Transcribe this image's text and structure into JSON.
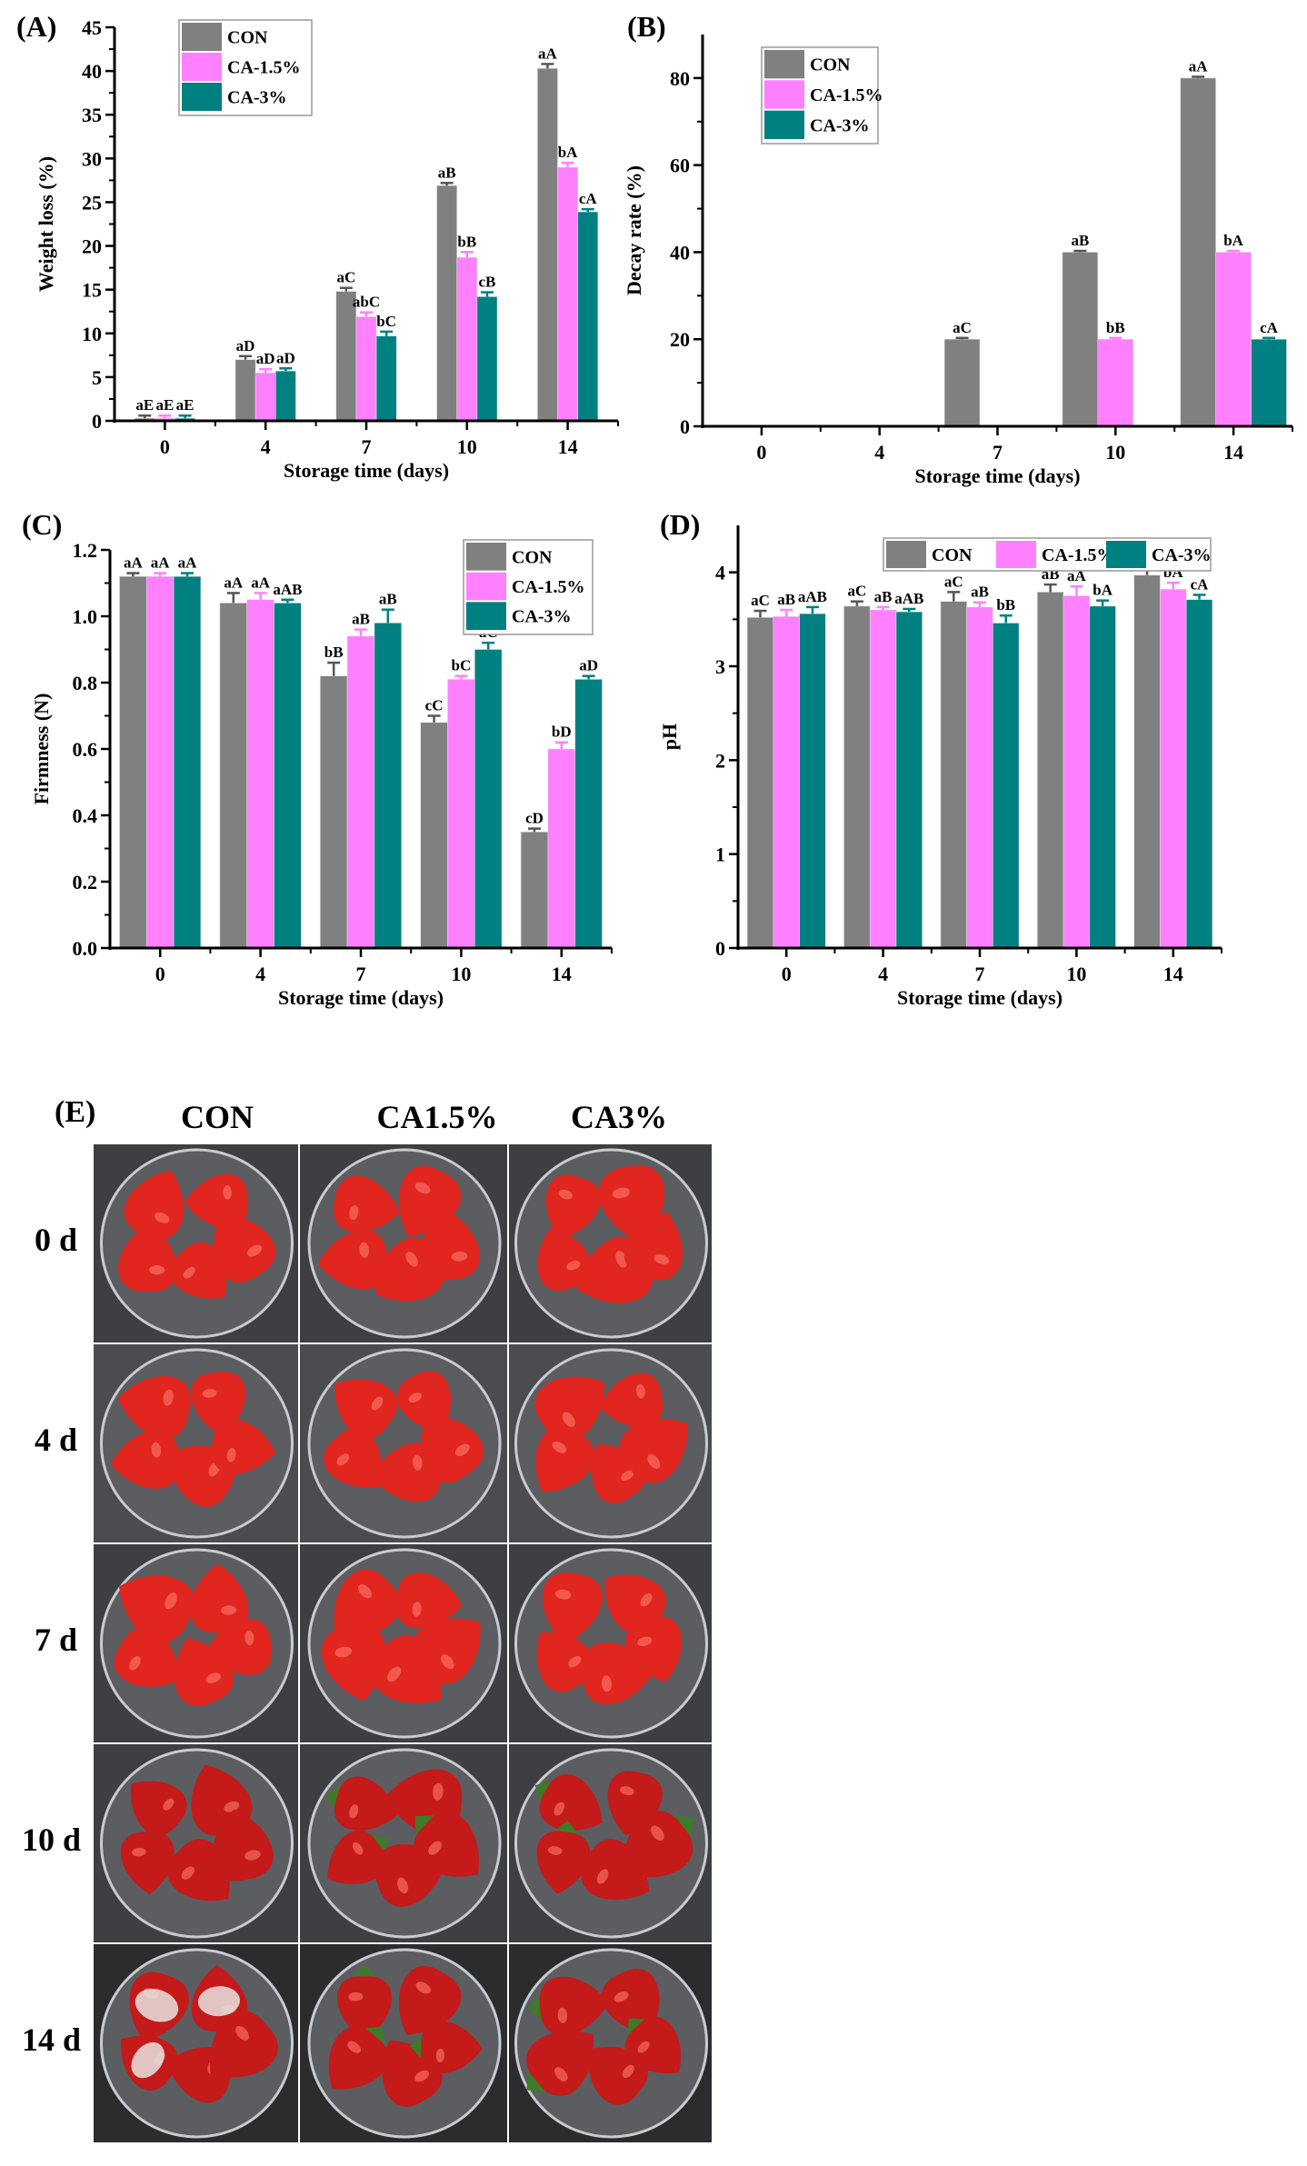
{
  "colors": {
    "CON": "#808080",
    "CA-1.5%": "#ff80ff",
    "CA-3%": "#008080"
  },
  "chart_data": [
    {
      "panel": "(A)",
      "type": "bar",
      "categories": [
        "0",
        "4",
        "7",
        "10",
        "14"
      ],
      "xlabel": "Storage time (days)",
      "ylabel": "Weight loss (%)",
      "ylim": [
        0,
        45
      ],
      "yticks": [
        0,
        5,
        10,
        15,
        20,
        25,
        30,
        35,
        40,
        45
      ],
      "legend": "top-left",
      "series": [
        {
          "name": "CON",
          "values": [
            0.3,
            7.0,
            14.8,
            26.9,
            40.3
          ],
          "errors": [
            0.3,
            0.4,
            0.4,
            0.3,
            0.5
          ],
          "labels": [
            "aE",
            "aD",
            "aC",
            "aB",
            "aA"
          ]
        },
        {
          "name": "CA-1.5%",
          "values": [
            0.3,
            5.5,
            11.9,
            18.7,
            29.0
          ],
          "errors": [
            0.3,
            0.4,
            0.5,
            0.6,
            0.5
          ],
          "labels": [
            "aE",
            "aD",
            "abC",
            "bB",
            "bA"
          ]
        },
        {
          "name": "CA-3%",
          "values": [
            0.3,
            5.7,
            9.7,
            14.2,
            23.9
          ],
          "errors": [
            0.3,
            0.3,
            0.5,
            0.5,
            0.3
          ],
          "labels": [
            "aE",
            "aD",
            "bC",
            "cB",
            "cA"
          ]
        }
      ]
    },
    {
      "panel": "(B)",
      "type": "bar",
      "categories": [
        "0",
        "4",
        "7",
        "10",
        "14"
      ],
      "xlabel": "Storage time (days)",
      "ylabel": "Decay rate (%)",
      "ylim": [
        0,
        90
      ],
      "yticks": [
        0,
        20,
        40,
        60,
        80
      ],
      "legend": "top-left",
      "series": [
        {
          "name": "CON",
          "values": [
            0,
            0,
            20,
            40,
            80
          ],
          "errors": [
            0,
            0,
            0.3,
            0.3,
            0.3
          ],
          "labels": [
            "",
            "",
            "aC",
            "aB",
            "aA"
          ]
        },
        {
          "name": "CA-1.5%",
          "values": [
            0,
            0,
            0,
            20,
            40
          ],
          "errors": [
            0,
            0,
            0,
            0.3,
            0.3
          ],
          "labels": [
            "",
            "",
            "",
            "bB",
            "bA"
          ]
        },
        {
          "name": "CA-3%",
          "values": [
            0,
            0,
            0,
            0,
            20
          ],
          "errors": [
            0,
            0,
            0,
            0,
            0.3
          ],
          "labels": [
            "",
            "",
            "",
            "",
            "cA"
          ]
        }
      ]
    },
    {
      "panel": "(C)",
      "type": "bar",
      "categories": [
        "0",
        "4",
        "7",
        "10",
        "14"
      ],
      "xlabel": "Storage time (days)",
      "ylabel": "Firmness (N)",
      "ylim": [
        0,
        1.2
      ],
      "yticks": [
        "0.0",
        "0.2",
        "0.4",
        "0.6",
        "0.8",
        "1.0",
        "1.2"
      ],
      "legend": "top-right",
      "series": [
        {
          "name": "CON",
          "values": [
            1.12,
            1.04,
            0.82,
            0.68,
            0.35
          ],
          "errors": [
            0.01,
            0.03,
            0.04,
            0.02,
            0.01
          ],
          "labels": [
            "aA",
            "aA",
            "bB",
            "cC",
            "cD"
          ]
        },
        {
          "name": "CA-1.5%",
          "values": [
            1.12,
            1.05,
            0.94,
            0.81,
            0.6
          ],
          "errors": [
            0.01,
            0.02,
            0.02,
            0.01,
            0.02
          ],
          "labels": [
            "aA",
            "aA",
            "aB",
            "bC",
            "bD"
          ]
        },
        {
          "name": "CA-3%",
          "values": [
            1.12,
            1.04,
            0.98,
            0.9,
            0.81
          ],
          "errors": [
            0.01,
            0.01,
            0.04,
            0.02,
            0.01
          ],
          "labels": [
            "aA",
            "aAB",
            "aB",
            "aC",
            "aD"
          ]
        }
      ]
    },
    {
      "panel": "(D)",
      "type": "bar",
      "categories": [
        "0",
        "4",
        "7",
        "10",
        "14"
      ],
      "xlabel": "Storage time (days)",
      "ylabel": "pH",
      "ylim": [
        0,
        4.5
      ],
      "yticks": [
        0,
        1,
        2,
        3,
        4
      ],
      "legend": "top (horizontal)",
      "series": [
        {
          "name": "CON",
          "values": [
            3.52,
            3.64,
            3.69,
            3.79,
            3.97
          ],
          "errors": [
            0.07,
            0.05,
            0.1,
            0.08,
            0.06
          ],
          "labels": [
            "aC",
            "aC",
            "aC",
            "aB",
            "aA"
          ]
        },
        {
          "name": "CA-1.5%",
          "values": [
            3.53,
            3.6,
            3.63,
            3.75,
            3.82
          ],
          "errors": [
            0.07,
            0.03,
            0.05,
            0.1,
            0.07
          ],
          "labels": [
            "aB",
            "aB",
            "aB",
            "aA",
            "bA"
          ]
        },
        {
          "name": "CA-3%",
          "values": [
            3.56,
            3.58,
            3.46,
            3.64,
            3.71
          ],
          "errors": [
            0.07,
            0.03,
            0.08,
            0.06,
            0.05
          ],
          "labels": [
            "aAB",
            "aAB",
            "bB",
            "bA",
            "cA"
          ]
        }
      ]
    }
  ],
  "photo_panel": {
    "label": "(E)",
    "columns": [
      "CON",
      "CA1.5%",
      "CA3%"
    ],
    "rows": [
      "0 d",
      "4 d",
      "7 d",
      "10 d",
      "14 d"
    ]
  }
}
